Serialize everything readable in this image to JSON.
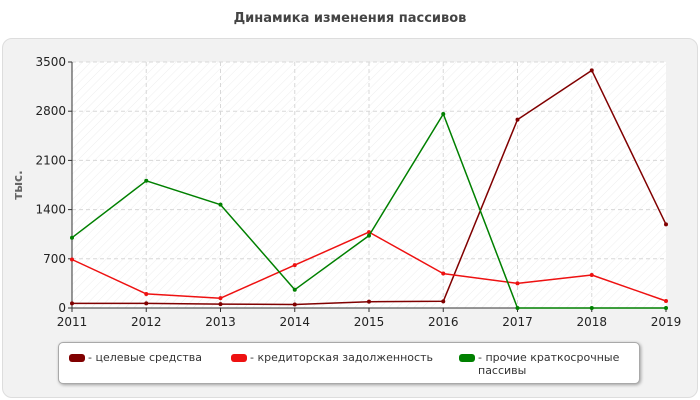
{
  "chart_data": {
    "type": "line",
    "title": "Динамика изменения пассивов",
    "ylabel": "тыс.",
    "xlabel": "",
    "x": [
      "2011",
      "2012",
      "2013",
      "2014",
      "2015",
      "2016",
      "2017",
      "2018",
      "2019"
    ],
    "ylim": [
      0,
      3500
    ],
    "yticks": [
      0,
      700,
      1400,
      2100,
      2800,
      3500
    ],
    "grid": true,
    "legend_position": "bottom",
    "series": [
      {
        "name": "- целевые средства",
        "color": "#800000",
        "values": [
          65,
          65,
          55,
          50,
          90,
          95,
          2680,
          3380,
          1190
        ]
      },
      {
        "name": "- кредиторская задолженность",
        "color": "#ee1111",
        "values": [
          690,
          200,
          140,
          610,
          1080,
          490,
          350,
          470,
          100
        ]
      },
      {
        "name": "- прочие краткосрочные пассивы",
        "color": "#008000",
        "values": [
          1000,
          1810,
          1470,
          260,
          1030,
          2760,
          0,
          0,
          0
        ]
      }
    ]
  }
}
